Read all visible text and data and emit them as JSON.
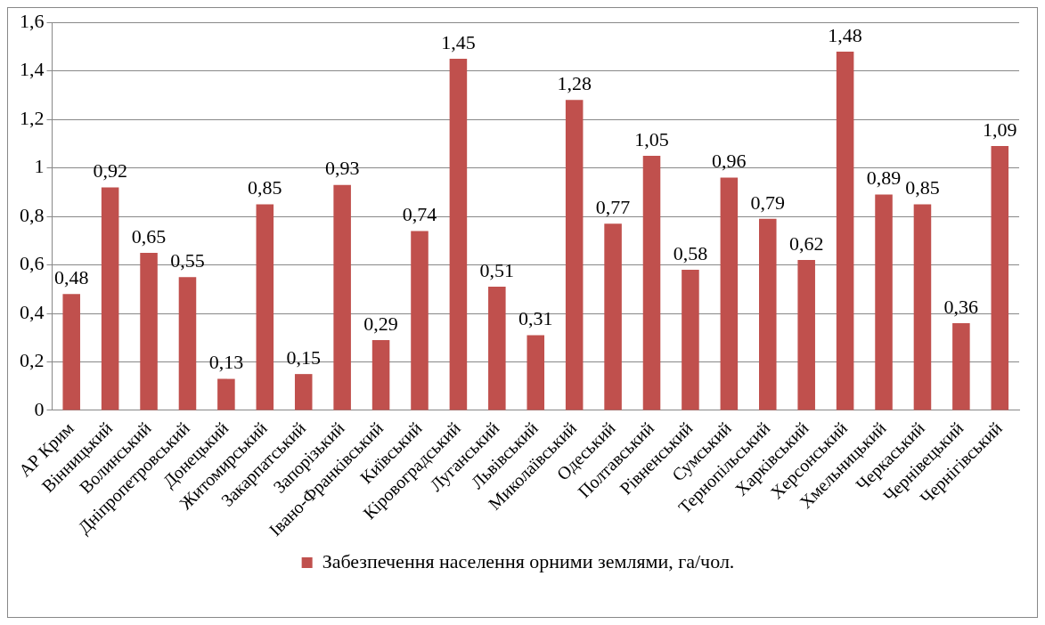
{
  "chart_data": {
    "type": "bar",
    "categories": [
      "АР Крим",
      "Вінницький",
      "Волинський",
      "Дніпропетровський",
      "Донецький",
      "Житомирський",
      "Закарпатський",
      "Запорізький",
      "Івано-Франківський",
      "Київський",
      "Кіровоградський",
      "Луганський",
      "Львівський",
      "Миколаївський",
      "Одеський",
      "Полтавський",
      "Рівненський",
      "Сумський",
      "Тернопільський",
      "Харківський",
      "Херсонський",
      "Хмельницький",
      "Черкаський",
      "Чернівецький",
      "Чернігівський"
    ],
    "series": [
      {
        "name": "Забезпечення населення орними землями, га/чол.",
        "color": "#c0504d",
        "values": [
          0.48,
          0.92,
          0.65,
          0.55,
          0.13,
          0.85,
          0.15,
          0.93,
          0.29,
          0.74,
          1.45,
          0.51,
          0.31,
          1.28,
          0.77,
          1.05,
          0.58,
          0.96,
          0.79,
          0.62,
          1.48,
          0.89,
          0.85,
          0.36,
          1.09
        ],
        "value_labels": [
          "0,48",
          "0,92",
          "0,65",
          "0,55",
          "0,13",
          "0,85",
          "0,15",
          "0,93",
          "0,29",
          "0,74",
          "1,45",
          "0,51",
          "0,31",
          "1,28",
          "0,77",
          "1,05",
          "0,58",
          "0,96",
          "0,79",
          "0,62",
          "1,48",
          "0,89",
          "0,85",
          "0,36",
          "1,09"
        ]
      }
    ],
    "ylim": [
      0,
      1.6
    ],
    "yticks": [
      0,
      {
        "value": 0.2,
        "label": "0,2"
      },
      {
        "value": 0.4,
        "label": "0,4"
      },
      {
        "value": 0.6,
        "label": "0,6"
      },
      {
        "value": 0.8,
        "label": "0,8"
      },
      1,
      {
        "value": 1.2,
        "label": "1,2"
      },
      {
        "value": 1.4,
        "label": "1,4"
      },
      {
        "value": 1.6,
        "label": "1,6"
      }
    ],
    "grid": "y",
    "legend": "bottom"
  }
}
